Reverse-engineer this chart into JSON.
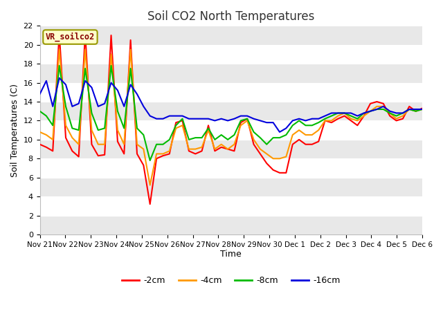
{
  "title": "Soil CO2 North Temperatures",
  "xlabel": "Time",
  "ylabel": "Soil Temperatures (C)",
  "ylim": [
    0,
    22
  ],
  "legend_label": "VR_soilco2",
  "colors": {
    "-2cm": "#ff0000",
    "-4cm": "#ff9900",
    "-8cm": "#00bb00",
    "-16cm": "#0000dd"
  },
  "line_width": 1.5,
  "fig_bg": "#ffffff",
  "plot_bg": "#ffffff",
  "grid_color": "#dddddd",
  "tick_labels": [
    "Nov 21",
    "Nov 22",
    "Nov 23",
    "Nov 24",
    "Nov 25",
    "Nov 26",
    "Nov 27",
    "Nov 28",
    "Nov 29",
    "Nov 30",
    "Dec 1",
    "Dec 2",
    "Dec 3",
    "Dec 4",
    "Dec 5",
    "Dec 6"
  ],
  "data_2cm": [
    9.5,
    9.2,
    8.8,
    21.2,
    10.2,
    8.8,
    8.2,
    21.2,
    9.5,
    8.3,
    8.4,
    21.0,
    9.8,
    8.5,
    20.5,
    8.5,
    7.3,
    3.2,
    8.0,
    8.3,
    8.5,
    11.8,
    12.0,
    8.8,
    8.5,
    8.8,
    11.5,
    8.8,
    9.2,
    9.0,
    8.8,
    11.8,
    12.2,
    9.5,
    8.5,
    7.5,
    6.8,
    6.5,
    6.5,
    9.5,
    10.0,
    9.5,
    9.5,
    9.8,
    12.0,
    11.8,
    12.2,
    12.5,
    12.0,
    11.5,
    12.5,
    13.8,
    14.0,
    13.8,
    12.5,
    12.0,
    12.2,
    13.5,
    13.0,
    13.3
  ],
  "data_4cm": [
    10.8,
    10.5,
    10.0,
    19.5,
    11.5,
    10.2,
    9.5,
    19.5,
    11.0,
    9.5,
    9.5,
    19.0,
    11.0,
    9.5,
    19.5,
    9.5,
    9.0,
    5.2,
    8.5,
    8.5,
    8.8,
    11.2,
    11.5,
    9.0,
    9.0,
    9.2,
    11.0,
    9.0,
    9.5,
    9.0,
    9.5,
    11.5,
    12.0,
    10.0,
    9.0,
    8.5,
    8.0,
    8.0,
    8.2,
    10.5,
    11.0,
    10.5,
    10.5,
    11.0,
    12.0,
    12.0,
    12.5,
    12.8,
    12.2,
    12.0,
    12.5,
    13.0,
    13.5,
    13.5,
    12.8,
    12.2,
    12.5,
    13.2,
    13.0,
    13.2
  ],
  "data_8cm": [
    13.0,
    12.5,
    11.5,
    17.8,
    13.5,
    11.2,
    11.0,
    17.5,
    12.8,
    11.0,
    11.2,
    17.8,
    13.0,
    11.2,
    17.5,
    11.2,
    10.5,
    7.8,
    9.5,
    9.5,
    10.0,
    11.5,
    12.2,
    10.0,
    10.2,
    10.2,
    11.2,
    10.0,
    10.5,
    10.0,
    10.5,
    12.0,
    12.2,
    10.8,
    10.2,
    9.5,
    10.2,
    10.2,
    10.5,
    11.5,
    12.0,
    11.5,
    11.5,
    11.8,
    12.2,
    12.5,
    12.8,
    12.8,
    12.5,
    12.2,
    12.8,
    13.0,
    13.2,
    13.2,
    12.8,
    12.5,
    12.8,
    13.2,
    13.0,
    13.2
  ],
  "data_16cm": [
    14.8,
    16.2,
    13.5,
    16.5,
    15.8,
    13.5,
    13.8,
    16.2,
    15.5,
    13.5,
    13.8,
    16.0,
    15.2,
    13.5,
    15.8,
    14.8,
    13.5,
    12.5,
    12.2,
    12.2,
    12.5,
    12.5,
    12.5,
    12.2,
    12.2,
    12.2,
    12.2,
    12.0,
    12.2,
    12.0,
    12.2,
    12.5,
    12.5,
    12.2,
    12.0,
    11.8,
    11.8,
    10.8,
    11.2,
    12.0,
    12.2,
    12.0,
    12.2,
    12.2,
    12.5,
    12.8,
    12.8,
    12.8,
    12.8,
    12.5,
    12.8,
    13.0,
    13.2,
    13.5,
    13.0,
    12.8,
    12.8,
    13.2,
    13.2,
    13.2
  ]
}
